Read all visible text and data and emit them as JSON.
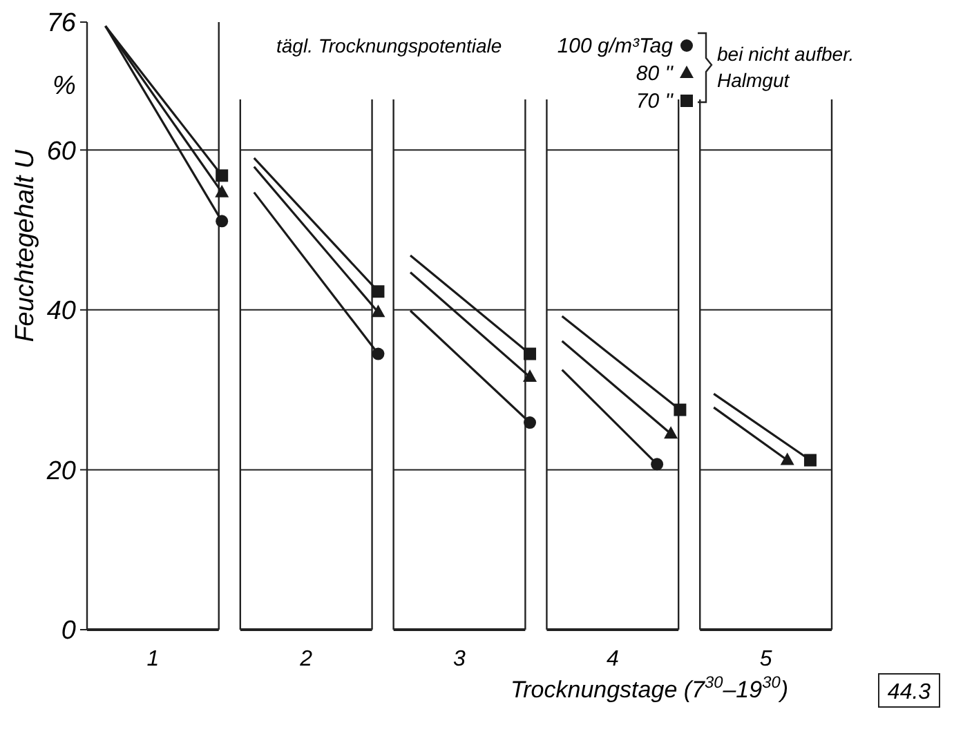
{
  "chart_data": {
    "type": "line",
    "xlabel": "Trocknungstage (7$^{30}$–19$^{30}$)",
    "ylabel": "Feuchtegehalt U",
    "legend_title": "tägl. Trocknungspotentiale",
    "legend": "top",
    "grid": "y",
    "xlim": [
      0.57,
      5.43
    ],
    "xticks": [
      1,
      2,
      3,
      4,
      5
    ],
    "ylim": [
      0,
      76
    ],
    "yticks": [
      0,
      20,
      40,
      60,
      76
    ],
    "line_style": "solid",
    "annotations": [
      "bei nicht aufber. Halmgut",
      "%",
      "44.3"
    ],
    "series": [
      {
        "name": "100 g/m³Tag",
        "color": "#1a1a1a",
        "marker": "circle",
        "x": [
          0.69,
          1.45,
          1.55,
          1.66,
          2.47,
          2.57,
          2.68,
          3.46,
          3.56,
          3.67,
          4.29
        ],
        "values": [
          75.5,
          51.1,
          null,
          54.7,
          34.5,
          null,
          39.9,
          25.9,
          null,
          32.5,
          20.7
        ]
      },
      {
        "name": "80 ''",
        "color": "#1a1a1a",
        "marker": "triangle",
        "x": [
          0.69,
          1.45,
          1.55,
          1.66,
          2.47,
          2.57,
          2.68,
          3.46,
          3.56,
          3.67,
          4.38,
          4.5,
          4.66,
          5.14
        ],
        "values": [
          75.5,
          54.7,
          null,
          57.9,
          39.7,
          null,
          44.7,
          31.6,
          null,
          36.1,
          24.5,
          null,
          27.8,
          21.2
        ]
      },
      {
        "name": "70 ''",
        "color": "#1a1a1a",
        "marker": "square",
        "x": [
          0.69,
          1.45,
          1.55,
          1.66,
          2.47,
          2.57,
          2.68,
          3.46,
          3.56,
          3.67,
          4.44,
          4.55,
          4.66,
          5.29
        ],
        "values": [
          75.5,
          56.8,
          null,
          59,
          42.3,
          null,
          46.8,
          34.5,
          null,
          39.2,
          27.5,
          null,
          29.5,
          21.2
        ]
      }
    ]
  }
}
